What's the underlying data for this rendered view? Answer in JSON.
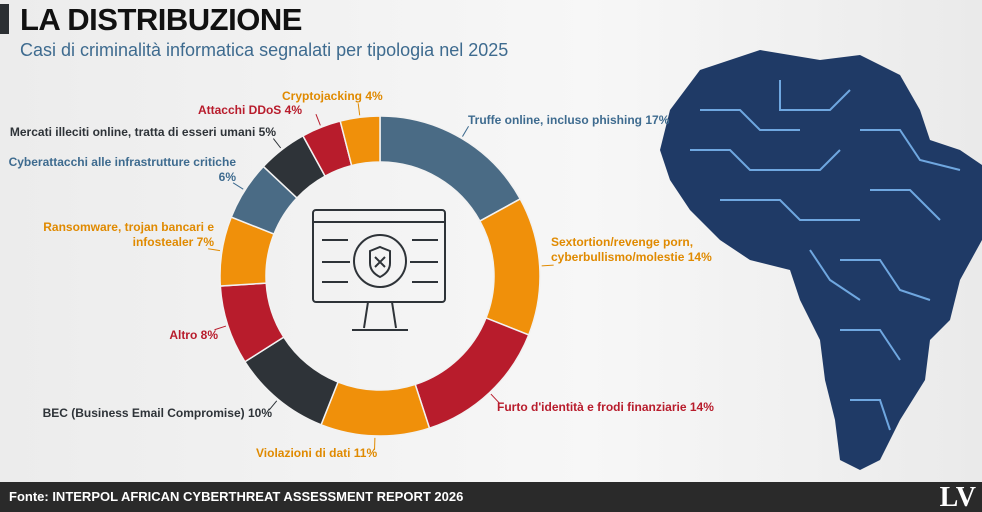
{
  "chart_data": {
    "type": "donut",
    "title": "LA DISTRIBUZIONE",
    "subtitle": "Casi di criminalità informatica segnalati per tipologia nel 2025",
    "categories": [
      "Truffe online, incluso phishing",
      "Sextortion/revenge porn, cyberbullismo/molestie",
      "Furto d'identità e frodi finanziarie",
      "Violazioni di dati",
      "BEC (Business Email Compromise)",
      "Altro",
      "Ransomware, trojan bancari e infostealer",
      "Cyberattacchi alle infrastrutture critiche",
      "Mercati illeciti online, tratta di esseri umani",
      "Attacchi DDoS",
      "Cryptojacking"
    ],
    "values": [
      17,
      14,
      14,
      11,
      10,
      8,
      7,
      6,
      5,
      4,
      4
    ],
    "value_labels": [
      "17%",
      "14%",
      "14%",
      "11%",
      "10%",
      "8%",
      "7%",
      "6%",
      "5%",
      "4%",
      "4%"
    ],
    "colors": [
      "#4a6b85",
      "#f0900a",
      "#b81c2c",
      "#f0900a",
      "#2e3338",
      "#b81c2c",
      "#f0900a",
      "#4a6b85",
      "#2e3338",
      "#b81c2c",
      "#f0900a"
    ],
    "label_colors": [
      "#3e6b8f",
      "#e08a00",
      "#b81c2c",
      "#e08a00",
      "#2e3338",
      "#b81c2c",
      "#e08a00",
      "#3e6b8f",
      "#2e3338",
      "#b81c2c",
      "#e08a00"
    ],
    "source": "Fonte: INTERPOL AFRICAN CYBERTHREAT ASSESSMENT REPORT 2026",
    "logo": "LV"
  }
}
